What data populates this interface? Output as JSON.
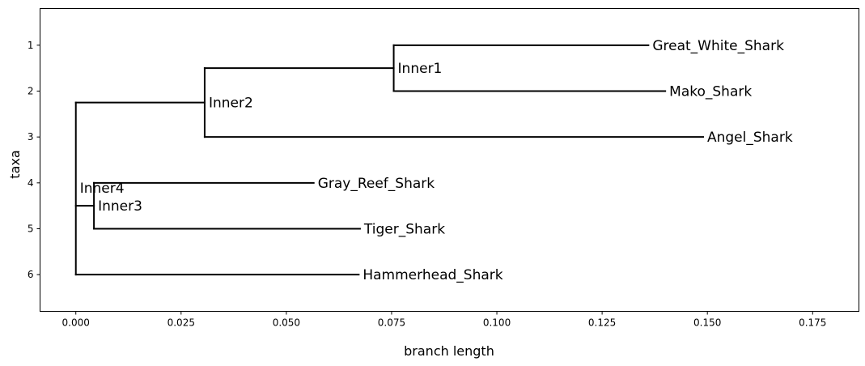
{
  "chart_data": {
    "type": "tree",
    "xlabel": "branch length",
    "ylabel": "taxa",
    "xlim": [
      -0.0085,
      0.186
    ],
    "ylim": [
      6.8,
      0.2
    ],
    "x_ticks": [
      0.0,
      0.025,
      0.05,
      0.075,
      0.1,
      0.125,
      0.15,
      0.175
    ],
    "x_tick_labels": [
      "0.000",
      "0.025",
      "0.050",
      "0.075",
      "0.100",
      "0.125",
      "0.150",
      "0.175"
    ],
    "y_ticks": [
      1,
      2,
      3,
      4,
      5,
      6
    ],
    "y_tick_labels": [
      "1",
      "2",
      "3",
      "4",
      "5",
      "6"
    ],
    "grid": false,
    "nodes": [
      {
        "id": "root",
        "label": "",
        "x": 0.0,
        "y": 4.5,
        "parent": null
      },
      {
        "id": "Inner2",
        "label": "Inner2",
        "x": 0.0306,
        "y": 2.25,
        "parent": "root"
      },
      {
        "id": "Inner1",
        "label": "Inner1",
        "x": 0.0755,
        "y": 1.5,
        "parent": "Inner2"
      },
      {
        "id": "Great_White_Shark",
        "label": "Great_White_Shark",
        "x": 0.136,
        "y": 1,
        "parent": "Inner1"
      },
      {
        "id": "Mako_Shark",
        "label": "Mako_Shark",
        "x": 0.14,
        "y": 2,
        "parent": "Inner1"
      },
      {
        "id": "Angel_Shark",
        "label": "Angel_Shark",
        "x": 0.149,
        "y": 3,
        "parent": "Inner2"
      },
      {
        "id": "Inner4",
        "label": "Inner4",
        "x": 0.0,
        "y": 4.5,
        "parent": "root"
      },
      {
        "id": "Inner3",
        "label": "Inner3",
        "x": 0.0043,
        "y": 4.5,
        "parent": "Inner4"
      },
      {
        "id": "Gray_Reef_Shark",
        "label": "Gray_Reef_Shark",
        "x": 0.0565,
        "y": 4,
        "parent": "Inner3"
      },
      {
        "id": "Tiger_Shark",
        "label": "Tiger_Shark",
        "x": 0.0675,
        "y": 5,
        "parent": "Inner3"
      },
      {
        "id": "Hammerhead_Shark",
        "label": "Hammerhead_Shark",
        "x": 0.0672,
        "y": 6,
        "parent": "root"
      }
    ]
  }
}
